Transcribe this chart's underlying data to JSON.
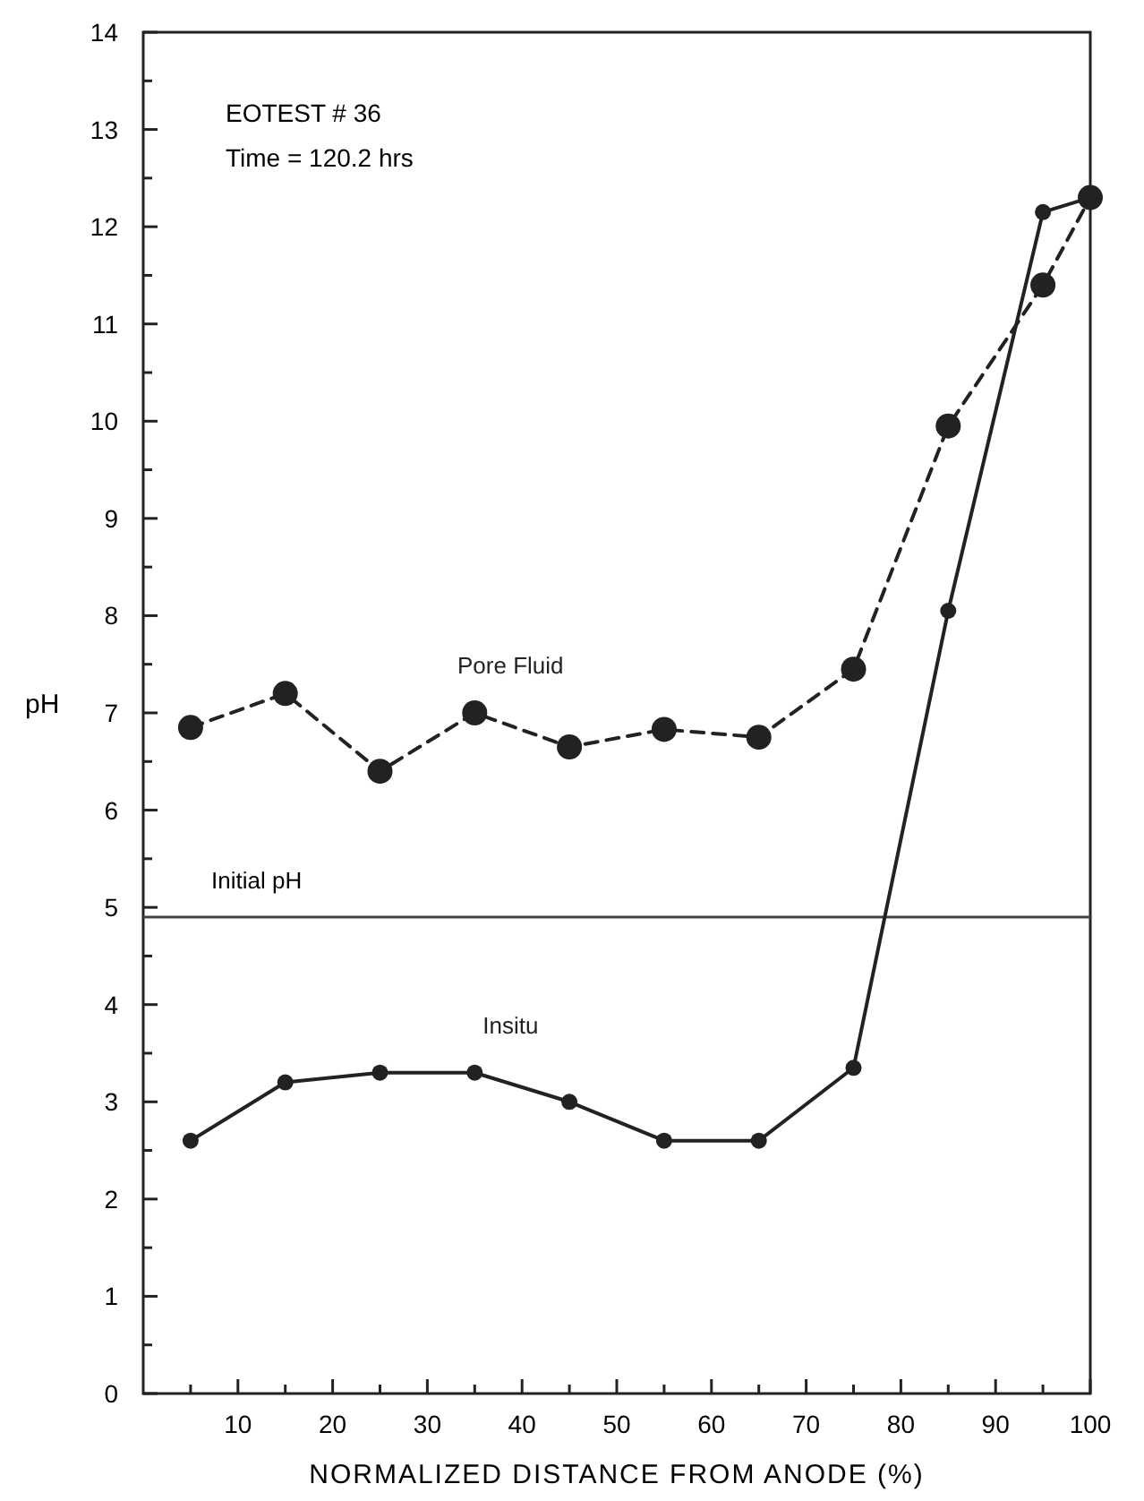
{
  "chart_data": {
    "type": "line",
    "xlabel": "NORMALIZED DISTANCE FROM ANODE (%)",
    "ylabel": "pH",
    "annotations": [
      "EOTEST # 36",
      "Time = 120.2 hrs"
    ],
    "x": [
      5,
      15,
      25,
      35,
      45,
      55,
      65,
      75,
      85,
      95,
      100
    ],
    "series": [
      {
        "name": "Pore Fluid",
        "color": "#222222",
        "line_style": "dashed",
        "values": [
          6.85,
          7.2,
          6.4,
          7.0,
          6.65,
          6.83,
          6.75,
          7.45,
          9.95,
          11.4,
          12.3
        ]
      },
      {
        "name": "Insitu",
        "color": "#222222",
        "line_style": "solid",
        "values": [
          2.6,
          3.2,
          3.3,
          3.3,
          3.0,
          2.6,
          2.6,
          3.35,
          8.05,
          12.15,
          12.3
        ]
      }
    ],
    "ref_lines": [
      {
        "axis": "y",
        "value": 4.9,
        "label": "Initial pH",
        "color": "#444444"
      }
    ],
    "xlim": [
      0,
      100
    ],
    "ylim": [
      0,
      14
    ],
    "xticks": [
      {
        "value": 5,
        "label": null
      },
      10,
      {
        "value": 15,
        "label": null
      },
      20,
      {
        "value": 25,
        "label": null
      },
      30,
      {
        "value": 35,
        "label": null
      },
      40,
      {
        "value": 45,
        "label": null
      },
      50,
      {
        "value": 55,
        "label": null
      },
      60,
      {
        "value": 65,
        "label": null
      },
      70,
      {
        "value": 75,
        "label": null
      },
      80,
      {
        "value": 85,
        "label": null
      },
      90,
      {
        "value": 95,
        "label": null
      },
      100
    ],
    "yticks": [
      0,
      {
        "value": 0.5,
        "label": null
      },
      1,
      {
        "value": 1.5,
        "label": null
      },
      2,
      {
        "value": 2.5,
        "label": null
      },
      3,
      {
        "value": 3.5,
        "label": null
      },
      4,
      {
        "value": 4.5,
        "label": null
      },
      5,
      {
        "value": 5.5,
        "label": null
      },
      6,
      {
        "value": 6.5,
        "label": null
      },
      7,
      {
        "value": 7.5,
        "label": null
      },
      8,
      {
        "value": 8.5,
        "label": null
      },
      9,
      {
        "value": 9.5,
        "label": null
      },
      10,
      {
        "value": 10.5,
        "label": null
      },
      11,
      {
        "value": 11.5,
        "label": null
      },
      12,
      {
        "value": 12.5,
        "label": null
      },
      13,
      {
        "value": 13.5,
        "label": null
      },
      14
    ],
    "grid": false,
    "marker": "circle"
  }
}
